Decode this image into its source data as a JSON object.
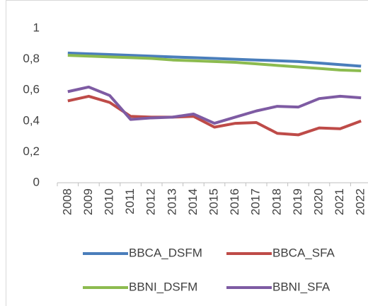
{
  "chart_data": {
    "type": "line",
    "categories": [
      "2008",
      "2009",
      "2010",
      "2011",
      "2012",
      "2013",
      "2014",
      "2015",
      "2016",
      "2017",
      "2018",
      "2019",
      "2020",
      "2021",
      "2022"
    ],
    "ylim": [
      0,
      1
    ],
    "yticks": [
      0,
      {
        "value": 0.2,
        "label": "0,2"
      },
      {
        "value": 0.4,
        "label": "0,4"
      },
      {
        "value": 0.6,
        "label": "0,6"
      },
      {
        "value": 0.8,
        "label": "0,8"
      },
      1
    ],
    "grid": false,
    "series": [
      {
        "name": "BBCA_DSFM",
        "color": "#4a7ebb",
        "values": [
          0.84,
          0.835,
          0.83,
          0.825,
          0.82,
          0.815,
          0.81,
          0.805,
          0.8,
          0.795,
          0.79,
          0.785,
          0.775,
          0.765,
          0.755
        ]
      },
      {
        "name": "BBCA_SFA",
        "color": "#be4b48",
        "values": [
          0.53,
          0.56,
          0.52,
          0.43,
          0.425,
          0.425,
          0.43,
          0.36,
          0.385,
          0.39,
          0.32,
          0.31,
          0.355,
          0.35,
          0.4
        ]
      },
      {
        "name": "BBNI_DSFM",
        "color": "#8cbb4f",
        "values": [
          0.825,
          0.82,
          0.815,
          0.81,
          0.805,
          0.795,
          0.79,
          0.785,
          0.78,
          0.77,
          0.76,
          0.75,
          0.74,
          0.73,
          0.725
        ]
      },
      {
        "name": "BBNI_SFA",
        "color": "#7e5ba3",
        "values": [
          0.59,
          0.62,
          0.565,
          0.41,
          0.42,
          0.425,
          0.445,
          0.385,
          0.425,
          0.465,
          0.495,
          0.49,
          0.545,
          0.56,
          0.55
        ]
      }
    ]
  }
}
